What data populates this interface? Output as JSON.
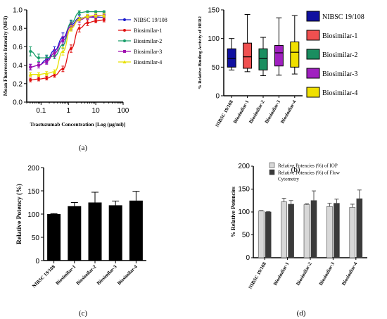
{
  "panels": {
    "a": "(a)",
    "b": "(b)",
    "c": "(c)",
    "d": "(d)"
  },
  "chart_data": [
    {
      "panel": "a",
      "type": "line",
      "xlabel": "Trastuzumab Concentration [Log (µg/ml)]",
      "ylabel": "Mean Fluorescence Intensity (MFI)",
      "x_scale": "log",
      "xlim": [
        0.03,
        100
      ],
      "ylim": [
        0.0,
        1.0
      ],
      "x_ticks": [
        "0.1",
        "1",
        "10",
        "100"
      ],
      "y_ticks": [
        "0.0",
        "0.2",
        "0.4",
        "0.6",
        "0.8",
        "1.0"
      ],
      "legend_position": "top-right",
      "x": [
        0.041,
        0.082,
        0.16,
        0.31,
        0.63,
        1.25,
        2.5,
        5,
        10,
        20
      ],
      "series": [
        {
          "name": "NIBSC 19/108",
          "color": "#1a1acc",
          "marker": "circle",
          "values": [
            0.38,
            0.4,
            0.46,
            0.56,
            0.7,
            0.84,
            0.91,
            0.92,
            0.92,
            0.92
          ],
          "errors": [
            0.03,
            0.03,
            0.04,
            0.04,
            0.05,
            0.04,
            0.03,
            0.02,
            0.02,
            0.02
          ]
        },
        {
          "name": "Biosimilar-1",
          "color": "#e01010",
          "marker": "circle",
          "values": [
            0.24,
            0.25,
            0.26,
            0.29,
            0.36,
            0.58,
            0.8,
            0.86,
            0.88,
            0.89
          ],
          "errors": [
            0.02,
            0.02,
            0.02,
            0.02,
            0.03,
            0.04,
            0.04,
            0.03,
            0.02,
            0.02
          ]
        },
        {
          "name": "Biosimilar-2",
          "color": "#1a9e6a",
          "marker": "circle",
          "values": [
            0.55,
            0.48,
            0.48,
            0.5,
            0.62,
            0.86,
            0.97,
            0.98,
            0.98,
            0.98
          ],
          "errors": [
            0.05,
            0.04,
            0.03,
            0.03,
            0.04,
            0.03,
            0.02,
            0.01,
            0.01,
            0.01
          ]
        },
        {
          "name": "Biosimilar-3",
          "color": "#a010b0",
          "marker": "square",
          "values": [
            0.38,
            0.4,
            0.44,
            0.53,
            0.67,
            0.82,
            0.89,
            0.92,
            0.93,
            0.94
          ],
          "errors": [
            0.03,
            0.03,
            0.03,
            0.04,
            0.04,
            0.04,
            0.03,
            0.02,
            0.02,
            0.02
          ]
        },
        {
          "name": "Biosimilar-4",
          "color": "#e8e000",
          "marker": "triangle",
          "values": [
            0.3,
            0.3,
            0.31,
            0.33,
            0.55,
            0.8,
            0.9,
            0.93,
            0.94,
            0.94
          ],
          "errors": [
            0.02,
            0.02,
            0.02,
            0.02,
            0.04,
            0.03,
            0.02,
            0.02,
            0.02,
            0.02
          ]
        }
      ]
    },
    {
      "panel": "b",
      "type": "box",
      "ylabel": "% Relative Binding Activity of HER2",
      "ylim": [
        0,
        150
      ],
      "y_ticks": [
        "0",
        "50",
        "100",
        "150"
      ],
      "legend_position": "right",
      "categories": [
        "NIBSC 19/108",
        "Biosimilar-1",
        "Biosimilar-2",
        "Biosimilar-3",
        "Biosimilar-4"
      ],
      "boxes": [
        {
          "name": "NIBSC 19/108",
          "color": "#1010a0",
          "min": 45,
          "q1": 50,
          "median": 65,
          "q3": 82,
          "max": 100
        },
        {
          "name": "Biosimilar-1",
          "color": "#f05050",
          "min": 42,
          "q1": 48,
          "median": 68,
          "q3": 92,
          "max": 142
        },
        {
          "name": "Biosimilar-2",
          "color": "#1a8e60",
          "min": 35,
          "q1": 45,
          "median": 65,
          "q3": 82,
          "max": 102
        },
        {
          "name": "Biosimilar-3",
          "color": "#a020c0",
          "min": 36,
          "q1": 52,
          "median": 75,
          "q3": 88,
          "max": 136
        },
        {
          "name": "Biosimilar-4",
          "color": "#f0e000",
          "min": 38,
          "q1": 50,
          "median": 76,
          "q3": 94,
          "max": 140
        }
      ]
    },
    {
      "panel": "c",
      "type": "bar",
      "ylabel": "Relative Potency (%)",
      "ylim": [
        0,
        200
      ],
      "y_ticks": [
        "0",
        "50",
        "100",
        "150",
        "200"
      ],
      "categories": [
        "NIBSC 19/108",
        "Biosimilar-1",
        "Biosimilar-2",
        "Biosimilar-3",
        "Biosimilar-4"
      ],
      "values": [
        100,
        117,
        125,
        119,
        129
      ],
      "errors": [
        1,
        8,
        22,
        9,
        20
      ],
      "color": "#000000"
    },
    {
      "panel": "d",
      "type": "bar",
      "ylabel": "% Relative Potencies",
      "ylim": [
        0,
        200
      ],
      "y_ticks": [
        "0",
        "50",
        "100",
        "150",
        "200"
      ],
      "legend_position": "top-left",
      "categories": [
        "NIBSC 19/108",
        "Biosimilar-1",
        "Biosimilar-2",
        "Biosimilar-3",
        "Biosimilar-4"
      ],
      "series": [
        {
          "name": "Relative Potencies (%) of IOP",
          "color": "#d8d8d8",
          "values": [
            102,
            122,
            116,
            112,
            110
          ],
          "errors": [
            1,
            8,
            2,
            7,
            7
          ]
        },
        {
          "name": "Relative Potencies (%) of Flow Cytometry",
          "color": "#3a3a3a",
          "values": [
            100,
            117,
            125,
            119,
            129
          ],
          "errors": [
            1,
            8,
            21,
            9,
            19
          ]
        }
      ]
    }
  ]
}
